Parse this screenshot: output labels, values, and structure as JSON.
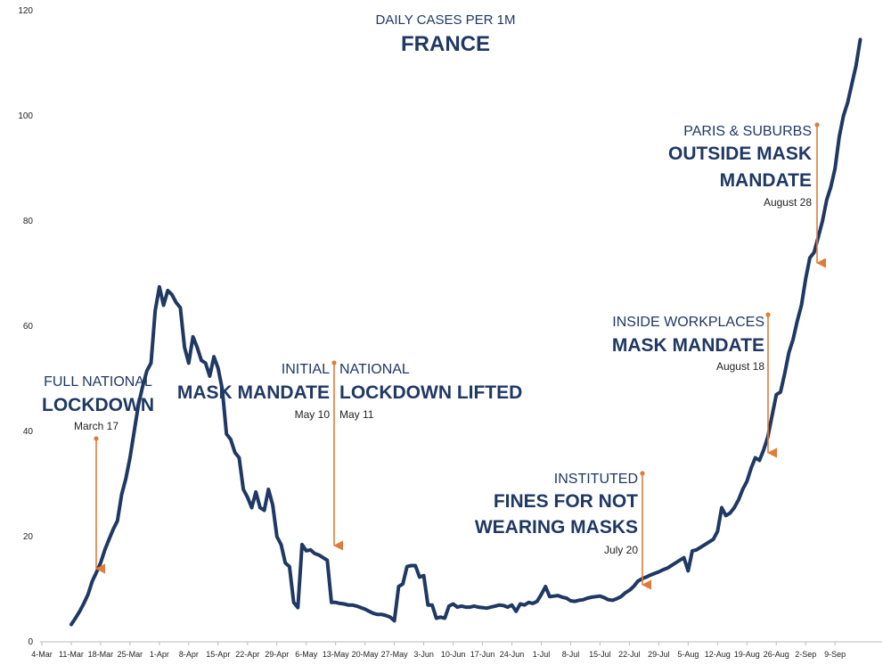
{
  "chart_data": {
    "type": "line",
    "title": "FRANCE",
    "subtitle": "DAILY CASES PER 1M",
    "xlabel": "",
    "ylabel": "",
    "ylim": [
      0,
      120
    ],
    "yticks": [
      0,
      20,
      40,
      60,
      80,
      100,
      120
    ],
    "grid": false,
    "x_tick_labels": [
      "4-Mar",
      "11-Mar",
      "18-Mar",
      "25-Mar",
      "1-Apr",
      "8-Apr",
      "15-Apr",
      "22-Apr",
      "29-Apr",
      "6-May",
      "13-May",
      "20-May",
      "27-May",
      "3-Jun",
      "10-Jun",
      "17-Jun",
      "24-Jun",
      "1-Jul",
      "8-Jul",
      "15-Jul",
      "22-Jul",
      "29-Jul",
      "5-Aug",
      "12-Aug",
      "19-Aug",
      "26-Aug",
      "2-Sep",
      "9-Sep"
    ],
    "line_color": "#1f3864",
    "arrow_color": "#e07b39",
    "series": [
      {
        "start_date": "2020-03-04",
        "comment": "values indexed by day, index 0 = 4-Mar",
        "values": [
          null,
          null,
          null,
          null,
          null,
          null,
          null,
          3.3,
          4.5,
          5.8,
          7.3,
          9.0,
          11.5,
          13.2,
          15.0,
          17.5,
          19.5,
          21.4,
          23.0,
          28.0,
          31.0,
          35.0,
          40.0,
          45.0,
          48.5,
          51.5,
          53.0,
          63.0,
          67.5,
          64.0,
          66.8,
          66.0,
          64.5,
          63.5,
          56.0,
          53.0,
          58.0,
          56.0,
          53.5,
          53.0,
          50.5,
          54.2,
          52.0,
          48.0,
          39.5,
          38.5,
          36.0,
          35.0,
          29.0,
          27.5,
          25.5,
          28.5,
          25.5,
          25.0,
          29.0,
          26.0,
          20.0,
          18.5,
          15.0,
          14.3,
          7.5,
          6.5,
          18.5,
          17.3,
          17.5,
          16.8,
          16.5,
          16.0,
          15.5,
          7.5,
          7.5,
          7.3,
          7.2,
          7.0,
          7.0,
          6.8,
          6.5,
          6.2,
          5.8,
          5.4,
          5.2,
          5.2,
          5.0,
          4.7,
          4.0,
          10.5,
          11.0,
          14.3,
          14.5,
          14.5,
          12.3,
          12.6,
          7.0,
          7.0,
          4.5,
          4.7,
          4.5,
          6.8,
          7.2,
          6.6,
          6.8,
          6.6,
          6.6,
          6.8,
          6.6,
          6.5,
          6.4,
          6.6,
          6.8,
          7.0,
          6.9,
          6.6,
          7.0,
          5.8,
          7.2,
          7.0,
          7.5,
          7.3,
          7.7,
          9.0,
          10.5,
          8.6,
          8.7,
          8.8,
          8.5,
          8.3,
          7.8,
          7.7,
          7.9,
          8.0,
          8.3,
          8.5,
          8.6,
          8.7,
          8.4,
          8.0,
          7.9,
          8.2,
          8.6,
          9.3,
          9.8,
          10.5,
          11.5,
          12.0,
          12.3,
          12.7,
          13.0,
          13.3,
          13.7,
          14.0,
          14.5,
          15.0,
          15.5,
          16.0,
          13.5,
          17.3,
          17.5,
          18.0,
          18.5,
          19.0,
          19.5,
          21.0,
          25.5,
          24.0,
          24.5,
          25.5,
          27.0,
          29.0,
          30.5,
          33.0,
          35.0,
          34.5,
          36.5,
          39.0,
          43.0,
          47.0,
          47.5,
          51.0,
          55.0,
          57.5,
          61.0,
          64.0,
          69.0,
          73.0,
          74.0,
          77.0,
          80.0,
          84.0,
          86.5,
          90.0,
          96.0,
          100.0,
          102.5,
          106.0,
          109.5,
          114.5
        ]
      }
    ],
    "annotations": [
      {
        "line1": "FULL NATIONAL",
        "line2": "LOCKDOWN",
        "date": "March 17"
      },
      {
        "line1": "INITIAL",
        "line2": "MASK MANDATE",
        "date": "May 10"
      },
      {
        "line1": "NATIONAL",
        "line2": "LOCKDOWN LIFTED",
        "date": "May 11"
      },
      {
        "line1": "INSTITUTED",
        "line2": "FINES FOR NOT",
        "line3": "WEARING MASKS",
        "date": "July 20"
      },
      {
        "line1": "INSIDE WORKPLACES",
        "line2": "MASK MANDATE",
        "date": "August 18"
      },
      {
        "line1": "PARIS & SUBURBS",
        "line2": "OUTSIDE MASK",
        "line3": "MANDATE",
        "date": "August 28"
      }
    ]
  }
}
